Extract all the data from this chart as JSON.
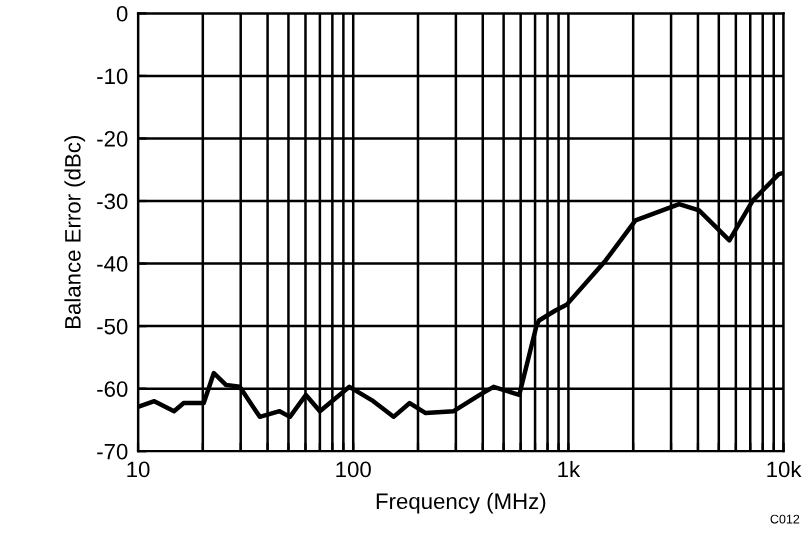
{
  "chart_data": {
    "type": "line",
    "xlabel": "Frequency (MHz)",
    "ylabel": "Balance Error (dBc)",
    "log": "x",
    "grid": true,
    "legend": false,
    "marker": "none",
    "line_style": "solid",
    "xlim": [
      10,
      10000
    ],
    "ylim": [
      -70,
      0
    ],
    "xticks": [
      {
        "value": 10,
        "label": "10"
      },
      {
        "value": 20,
        "label": null
      },
      {
        "value": 30,
        "label": null
      },
      {
        "value": 40,
        "label": null
      },
      {
        "value": 50,
        "label": null
      },
      {
        "value": 60,
        "label": null
      },
      {
        "value": 70,
        "label": null
      },
      {
        "value": 80,
        "label": null
      },
      {
        "value": 90,
        "label": null
      },
      {
        "value": 100,
        "label": "100"
      },
      {
        "value": 200,
        "label": null
      },
      {
        "value": 300,
        "label": null
      },
      {
        "value": 400,
        "label": null
      },
      {
        "value": 500,
        "label": null
      },
      {
        "value": 600,
        "label": null
      },
      {
        "value": 700,
        "label": null
      },
      {
        "value": 800,
        "label": null
      },
      {
        "value": 900,
        "label": null
      },
      {
        "value": 1000,
        "label": "1k"
      },
      {
        "value": 2000,
        "label": null
      },
      {
        "value": 3000,
        "label": null
      },
      {
        "value": 4000,
        "label": null
      },
      {
        "value": 5000,
        "label": null
      },
      {
        "value": 6000,
        "label": null
      },
      {
        "value": 7000,
        "label": null
      },
      {
        "value": 8000,
        "label": null
      },
      {
        "value": 9000,
        "label": null
      },
      {
        "value": 10000,
        "label": "10k"
      }
    ],
    "yticks": [
      0,
      -10,
      -20,
      -30,
      -40,
      -50,
      -60,
      -70
    ],
    "annotations": [
      "C012"
    ],
    "series": [
      {
        "color": "#000000",
        "x": [
          10,
          11.9,
          14.7,
          16.3,
          20.2,
          22.5,
          25.6,
          29.7,
          36.8,
          45.5,
          50.8,
          60.3,
          70,
          96,
          124,
          154,
          183,
          217,
          293,
          387,
          449,
          591,
          710,
          730,
          870,
          980,
          1490,
          2050,
          3270,
          4050,
          5600,
          7200,
          9500,
          10000
        ],
        "values": [
          -62.9,
          -62,
          -63.6,
          -62.3,
          -62.3,
          -57.5,
          -59.4,
          -59.7,
          -64.5,
          -63.6,
          -64.5,
          -61,
          -63.6,
          -59.7,
          -62,
          -64.5,
          -62.3,
          -63.9,
          -63.6,
          -61,
          -59.7,
          -61,
          -50,
          -49.1,
          -47.5,
          -46.6,
          -39.5,
          -33.1,
          -30.5,
          -31.5,
          -36.3,
          -29.9,
          -25.7,
          -25.5
        ]
      }
    ]
  }
}
